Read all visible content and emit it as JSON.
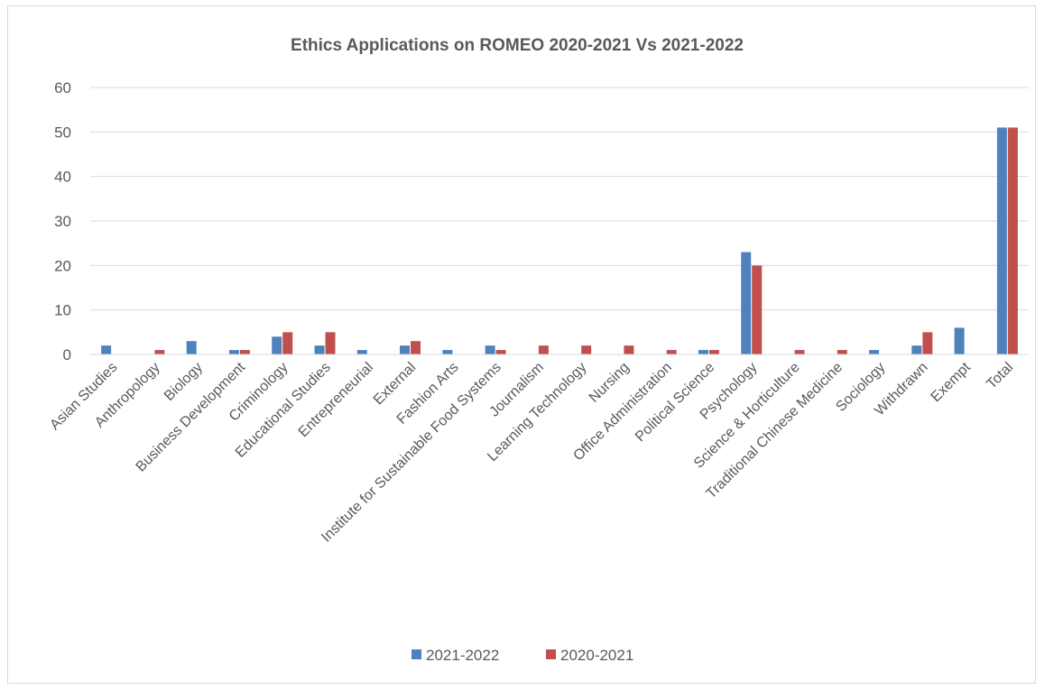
{
  "chart_data": {
    "type": "bar",
    "title": "Ethics Applications on ROMEO 2020-2021 Vs 2021-2022",
    "xlabel": "",
    "ylabel": "",
    "ylim": [
      0,
      60
    ],
    "yticks": [
      "0",
      "10",
      "20",
      "30",
      "40",
      "50",
      "60"
    ],
    "grid": true,
    "legend_position": "bottom",
    "categories": [
      "Asian Studies",
      "Anthropology",
      "Biology",
      "Business Development",
      "Criminology",
      "Educational Studies",
      "Entrepreneurial",
      "External",
      "Fashion Arts",
      "Institute for Sustainable Food Systems",
      "Journalism",
      "Learning Technology",
      "Nursing",
      "Office Administration",
      "Political Science",
      "Psychology",
      "Science & Horticulture",
      "Traditional Chinese Medicine",
      "Sociology",
      "Withdrawn",
      "Exempt",
      "Total"
    ],
    "series": [
      {
        "name": "2021-2022",
        "color": "#4f81bd",
        "values": [
          2,
          0,
          3,
          1,
          4,
          2,
          1,
          2,
          1,
          2,
          0,
          0,
          0,
          0,
          1,
          23,
          0,
          0,
          1,
          2,
          6,
          51
        ]
      },
      {
        "name": "2020-2021",
        "color": "#c0504d",
        "values": [
          0,
          1,
          0,
          1,
          5,
          5,
          0,
          3,
          0,
          1,
          2,
          2,
          2,
          1,
          1,
          20,
          1,
          1,
          0,
          5,
          0,
          51
        ]
      }
    ]
  }
}
